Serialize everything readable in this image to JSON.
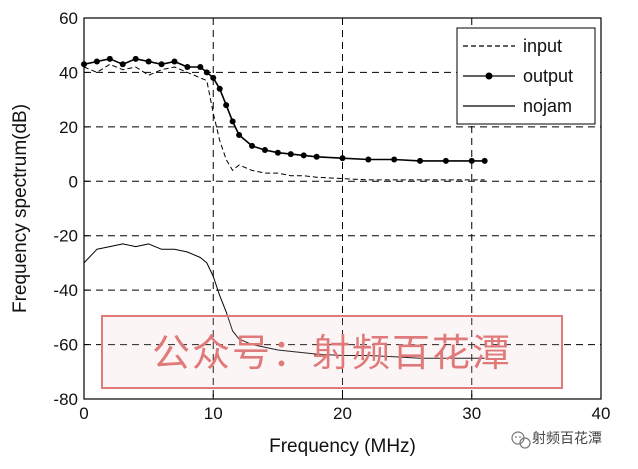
{
  "chart_data": {
    "type": "line",
    "xlabel": "Frequency (MHz)",
    "ylabel": "Frequency spectrum(dB)",
    "xlim": [
      0,
      40
    ],
    "ylim": [
      -80,
      60
    ],
    "xticks": [
      0,
      10,
      20,
      30,
      40
    ],
    "yticks": [
      -80,
      -60,
      -40,
      -20,
      0,
      20,
      40,
      60
    ],
    "grid": true,
    "legend_position": "top-right",
    "series": [
      {
        "name": "input",
        "style": "dashed",
        "color": "#000000",
        "x": [
          0,
          1,
          2,
          3,
          4,
          5,
          6,
          7,
          8,
          9,
          9.5,
          10,
          10.5,
          11,
          11.5,
          12,
          13,
          14,
          15,
          16,
          17,
          18,
          20,
          22,
          24,
          26,
          28,
          30,
          31
        ],
        "y": [
          42,
          40,
          43,
          41,
          42,
          39,
          41,
          42,
          40,
          38,
          37,
          25,
          15,
          8,
          4,
          6,
          4,
          3,
          3,
          2,
          2,
          1.5,
          1,
          0.5,
          0.5,
          0.5,
          0.5,
          0.5,
          0.5
        ]
      },
      {
        "name": "output",
        "style": "solid-dot",
        "color": "#000000",
        "x": [
          0,
          1,
          2,
          3,
          4,
          5,
          6,
          7,
          8,
          9,
          9.5,
          10,
          10.5,
          11,
          11.5,
          12,
          13,
          14,
          15,
          16,
          17,
          18,
          20,
          22,
          24,
          26,
          28,
          30,
          31
        ],
        "y": [
          43,
          44,
          45,
          43,
          45,
          44,
          43,
          44,
          42,
          42,
          40,
          38,
          34,
          28,
          22,
          17,
          13,
          11.5,
          10.5,
          10,
          9.5,
          9,
          8.5,
          8,
          8,
          7.5,
          7.5,
          7.5,
          7.5
        ]
      },
      {
        "name": "nojam",
        "style": "solid",
        "color": "#000000",
        "x": [
          0,
          1,
          2,
          3,
          4,
          5,
          6,
          7,
          8,
          9,
          9.5,
          10,
          10.5,
          11,
          11.5,
          12,
          13,
          14,
          15,
          16,
          17,
          18,
          20,
          22,
          24,
          26,
          28,
          30,
          31
        ],
        "y": [
          -30,
          -25,
          -24,
          -23,
          -24,
          -23,
          -25,
          -25,
          -26,
          -28,
          -30,
          -35,
          -42,
          -48,
          -55,
          -58,
          -60,
          -61,
          -62,
          -62.5,
          -63,
          -63.5,
          -64,
          -64,
          -64.5,
          -65,
          -65,
          -65,
          -65
        ]
      }
    ],
    "legend": [
      "input",
      "output",
      "nojam"
    ]
  },
  "watermark": {
    "text": "公众号：射频百花潭",
    "color": "#e07a7a"
  },
  "credit": {
    "text": "射频百花潭",
    "icon": "wechat-icon"
  }
}
